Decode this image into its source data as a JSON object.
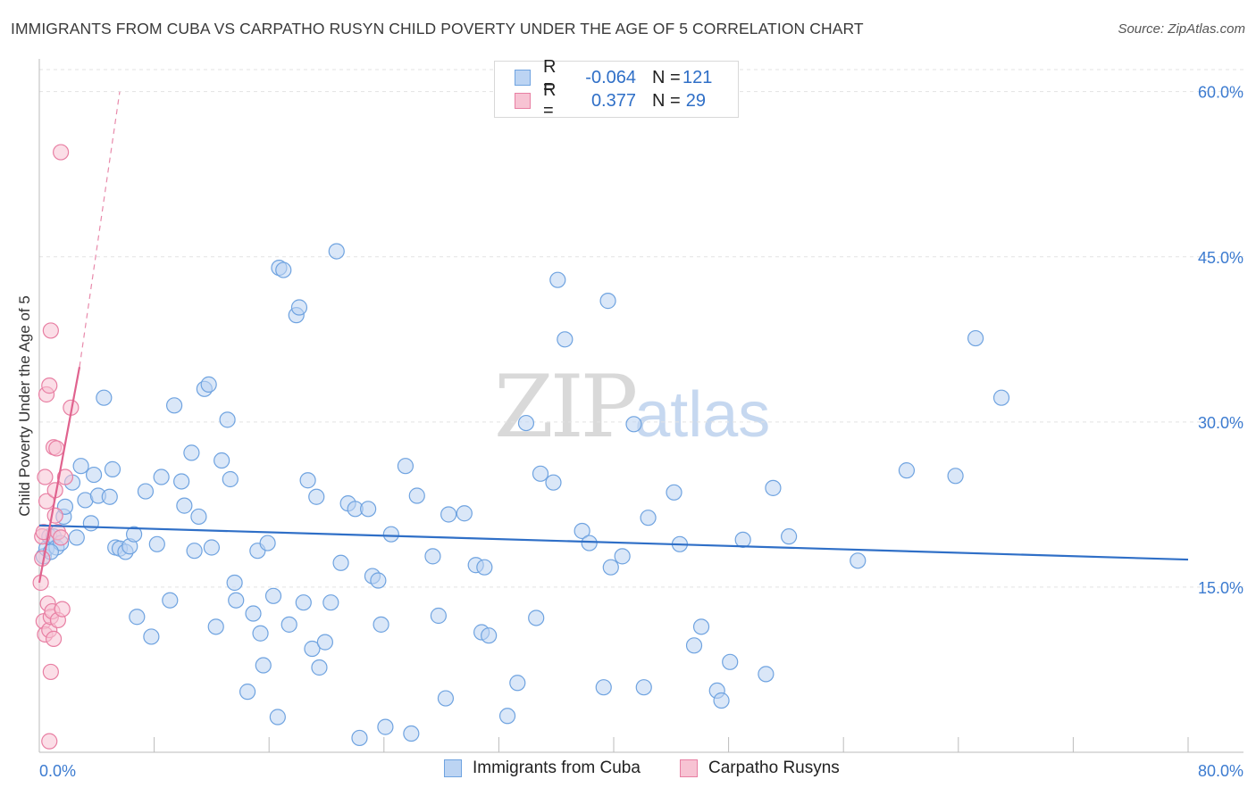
{
  "title": "IMMIGRANTS FROM CUBA VS CARPATHO RUSYN CHILD POVERTY UNDER THE AGE OF 5 CORRELATION CHART",
  "source": "Source: ZipAtlas.com",
  "watermark": {
    "zip": "ZIP",
    "atlas": "atlas"
  },
  "legend": {
    "rows": [
      {
        "r_label": "R =",
        "r_value": "-0.064",
        "n_label": "N =",
        "n_value": "121"
      },
      {
        "r_label": "R =",
        "r_value": "0.377",
        "n_label": "N =",
        "n_value": "29"
      }
    ]
  },
  "colors": {
    "blue": "#6fa3e0",
    "blue_fill": "#bcd4f3",
    "blue_line": "#2f6fc7",
    "pink": "#e87fa3",
    "pink_fill": "#f7c3d3",
    "pink_line": "#e0628e"
  },
  "chart_data": {
    "type": "scatter",
    "title": "IMMIGRANTS FROM CUBA VS CARPATHO RUSYN CHILD POVERTY UNDER THE AGE OF 5 CORRELATION CHART",
    "xlabel": "",
    "ylabel": "Child Poverty Under the Age of 5",
    "xlim": [
      0,
      80
    ],
    "ylim": [
      0,
      62
    ],
    "x_ticks": [
      "0.0%",
      "80.0%"
    ],
    "y_ticks": [
      {
        "value": 15,
        "label": "15.0%"
      },
      {
        "value": 30,
        "label": "30.0%"
      },
      {
        "value": 45,
        "label": "45.0%"
      },
      {
        "value": 60,
        "label": "60.0%"
      }
    ],
    "grid": true,
    "legend_position": "bottom",
    "series": [
      {
        "name": "Immigrants from Cuba",
        "color": "#6fa3e0",
        "trend": {
          "x": [
            0,
            80
          ],
          "y": [
            20.6,
            17.5
          ]
        },
        "points": [
          [
            0.3,
            17.8
          ],
          [
            0.5,
            18.5
          ],
          [
            0.7,
            19.6
          ],
          [
            1.0,
            19.6
          ],
          [
            1.2,
            18.6
          ],
          [
            1.5,
            19.0
          ],
          [
            1.7,
            21.4
          ],
          [
            1.8,
            22.3
          ],
          [
            2.3,
            24.5
          ],
          [
            2.6,
            19.5
          ],
          [
            2.9,
            26.0
          ],
          [
            3.2,
            22.9
          ],
          [
            3.6,
            20.8
          ],
          [
            3.8,
            25.2
          ],
          [
            4.1,
            23.3
          ],
          [
            4.5,
            32.2
          ],
          [
            4.9,
            23.2
          ],
          [
            5.1,
            25.7
          ],
          [
            5.3,
            18.6
          ],
          [
            5.6,
            18.5
          ],
          [
            6.0,
            18.2
          ],
          [
            6.3,
            18.7
          ],
          [
            6.6,
            19.8
          ],
          [
            6.8,
            12.3
          ],
          [
            7.4,
            23.7
          ],
          [
            7.8,
            10.5
          ],
          [
            8.2,
            18.9
          ],
          [
            8.5,
            25.0
          ],
          [
            9.1,
            13.8
          ],
          [
            9.4,
            31.5
          ],
          [
            9.9,
            24.6
          ],
          [
            10.1,
            22.4
          ],
          [
            10.6,
            27.2
          ],
          [
            10.8,
            18.3
          ],
          [
            11.1,
            21.4
          ],
          [
            11.5,
            33.0
          ],
          [
            11.8,
            33.4
          ],
          [
            12.0,
            18.6
          ],
          [
            12.3,
            11.4
          ],
          [
            12.7,
            26.5
          ],
          [
            13.1,
            30.2
          ],
          [
            13.3,
            24.8
          ],
          [
            13.6,
            15.4
          ],
          [
            13.7,
            13.8
          ],
          [
            14.5,
            5.5
          ],
          [
            14.9,
            12.6
          ],
          [
            15.2,
            18.3
          ],
          [
            15.4,
            10.8
          ],
          [
            15.6,
            7.9
          ],
          [
            15.9,
            19.0
          ],
          [
            16.3,
            14.2
          ],
          [
            16.6,
            3.2
          ],
          [
            16.7,
            44.0
          ],
          [
            17.0,
            43.8
          ],
          [
            17.4,
            11.6
          ],
          [
            17.9,
            39.7
          ],
          [
            18.1,
            40.4
          ],
          [
            18.4,
            13.6
          ],
          [
            18.7,
            24.7
          ],
          [
            19.0,
            9.4
          ],
          [
            19.3,
            23.2
          ],
          [
            19.5,
            7.7
          ],
          [
            19.9,
            10.0
          ],
          [
            20.3,
            13.6
          ],
          [
            20.7,
            45.5
          ],
          [
            21.0,
            17.2
          ],
          [
            21.5,
            22.6
          ],
          [
            22.0,
            22.1
          ],
          [
            22.3,
            1.3
          ],
          [
            22.9,
            22.1
          ],
          [
            23.2,
            16.0
          ],
          [
            23.6,
            15.6
          ],
          [
            23.8,
            11.6
          ],
          [
            24.1,
            2.3
          ],
          [
            24.5,
            19.8
          ],
          [
            25.5,
            26.0
          ],
          [
            25.9,
            1.7
          ],
          [
            26.3,
            23.3
          ],
          [
            27.4,
            17.8
          ],
          [
            27.8,
            12.4
          ],
          [
            28.3,
            4.9
          ],
          [
            28.5,
            21.6
          ],
          [
            29.6,
            21.7
          ],
          [
            30.4,
            17.0
          ],
          [
            30.8,
            10.9
          ],
          [
            31.0,
            16.8
          ],
          [
            31.3,
            10.6
          ],
          [
            32.6,
            3.3
          ],
          [
            33.3,
            6.3
          ],
          [
            33.9,
            29.9
          ],
          [
            34.6,
            12.2
          ],
          [
            34.9,
            25.3
          ],
          [
            35.8,
            24.5
          ],
          [
            36.1,
            42.9
          ],
          [
            36.6,
            37.5
          ],
          [
            37.8,
            20.1
          ],
          [
            38.3,
            19.0
          ],
          [
            39.3,
            5.9
          ],
          [
            39.6,
            41.0
          ],
          [
            39.8,
            16.8
          ],
          [
            40.6,
            17.8
          ],
          [
            41.4,
            29.8
          ],
          [
            42.1,
            5.9
          ],
          [
            42.4,
            21.3
          ],
          [
            44.2,
            23.6
          ],
          [
            44.6,
            18.9
          ],
          [
            45.6,
            9.7
          ],
          [
            46.1,
            11.4
          ],
          [
            47.2,
            5.6
          ],
          [
            47.5,
            4.7
          ],
          [
            48.1,
            8.2
          ],
          [
            49.0,
            19.3
          ],
          [
            50.6,
            7.1
          ],
          [
            51.1,
            24.0
          ],
          [
            52.2,
            19.6
          ],
          [
            57.0,
            17.4
          ],
          [
            60.4,
            25.6
          ],
          [
            63.8,
            25.1
          ],
          [
            65.2,
            37.6
          ],
          [
            67.0,
            32.2
          ],
          [
            0.8,
            18.2
          ]
        ]
      },
      {
        "name": "Carpatho Rusyns",
        "color": "#e87fa3",
        "trend": {
          "x": [
            0,
            2.8
          ],
          "y": [
            15.4,
            35.0
          ]
        },
        "trend_ext": {
          "x": [
            2.8,
            5.6
          ],
          "y": [
            35.0,
            60.0
          ]
        },
        "points": [
          [
            0.1,
            15.4
          ],
          [
            0.2,
            19.6
          ],
          [
            0.2,
            17.6
          ],
          [
            0.3,
            20.0
          ],
          [
            0.3,
            11.9
          ],
          [
            0.4,
            10.7
          ],
          [
            0.4,
            25.0
          ],
          [
            0.5,
            22.8
          ],
          [
            0.5,
            32.5
          ],
          [
            0.6,
            13.5
          ],
          [
            0.7,
            11.1
          ],
          [
            0.7,
            33.3
          ],
          [
            0.8,
            38.3
          ],
          [
            0.8,
            12.3
          ],
          [
            0.9,
            12.8
          ],
          [
            1.0,
            10.3
          ],
          [
            1.0,
            27.7
          ],
          [
            1.1,
            23.8
          ],
          [
            1.1,
            21.5
          ],
          [
            1.2,
            27.6
          ],
          [
            1.3,
            20.0
          ],
          [
            1.3,
            12.0
          ],
          [
            1.5,
            19.5
          ],
          [
            1.5,
            54.5
          ],
          [
            1.6,
            13.0
          ],
          [
            1.8,
            25.0
          ],
          [
            2.2,
            31.3
          ],
          [
            0.8,
            7.3
          ],
          [
            0.7,
            1.0
          ]
        ]
      }
    ]
  }
}
